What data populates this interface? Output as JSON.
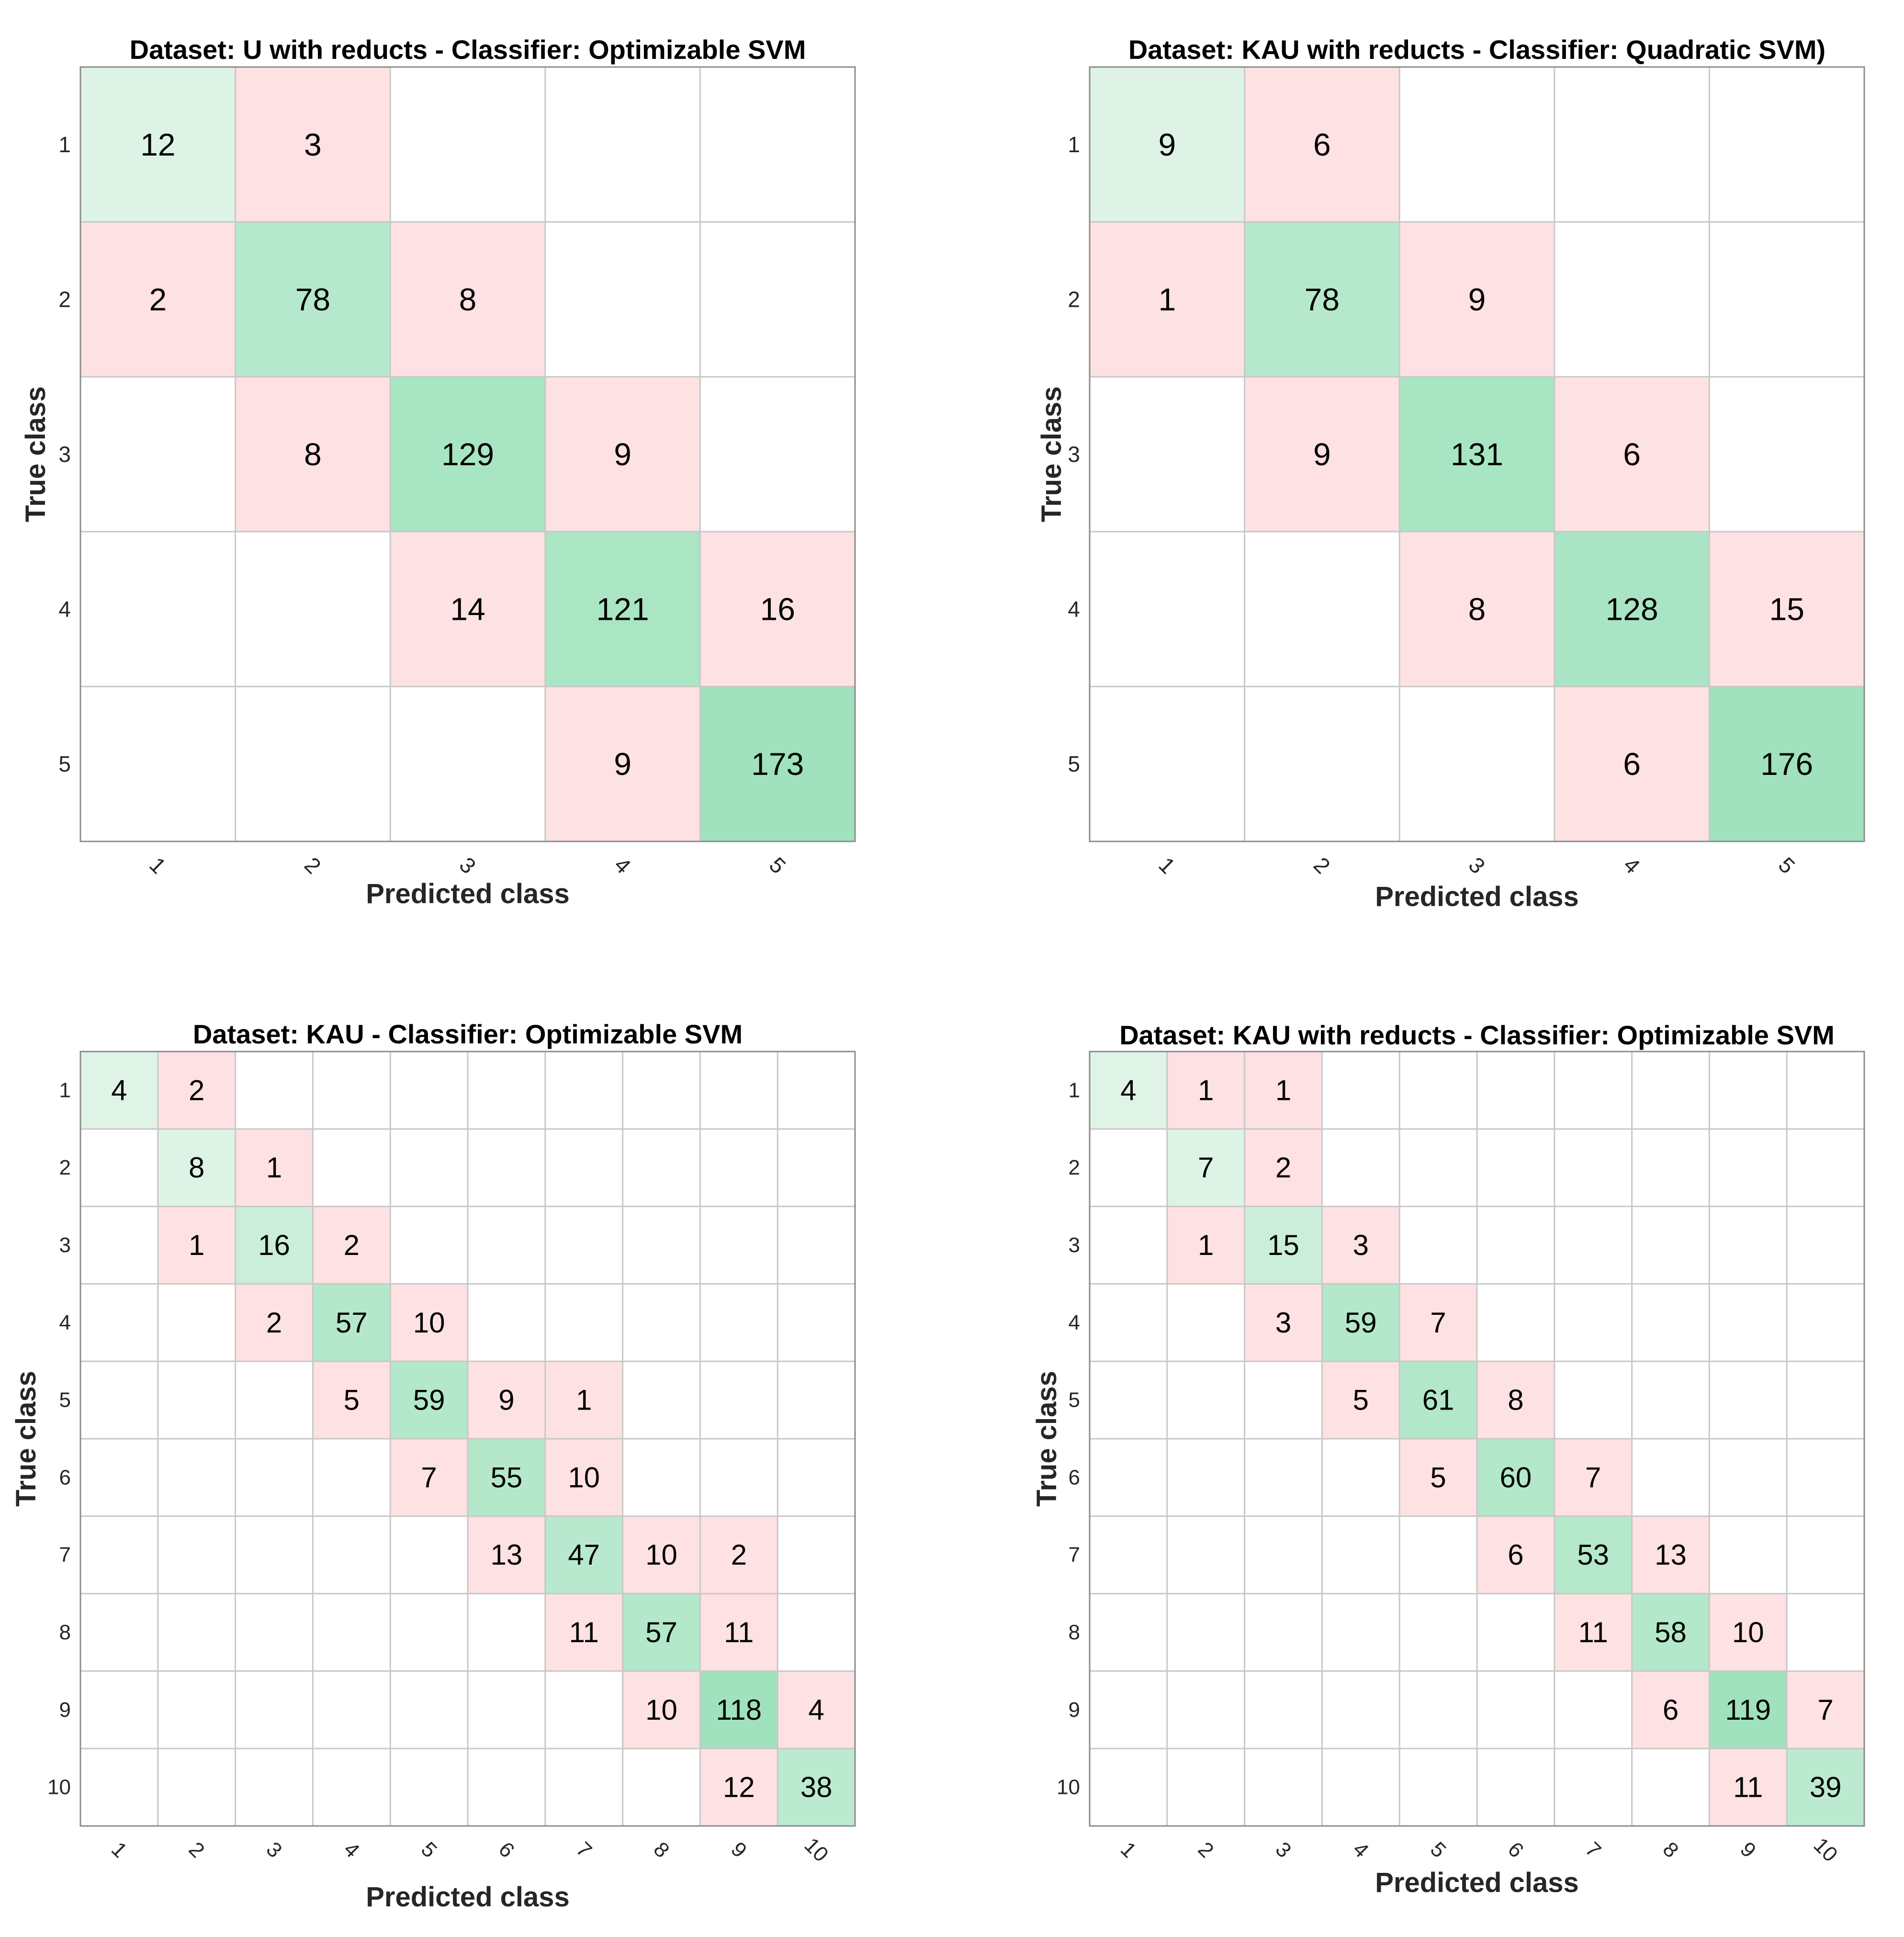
{
  "colors": {
    "background": "#ffffff",
    "grid": "#c8c8c8",
    "border": "#8c8c8c",
    "correct_low": "#e3f5ea",
    "correct_high": "#9fe2bd",
    "incorrect": "#fde1e3"
  },
  "chart_data": [
    {
      "type": "heatmap",
      "title": "Dataset: U with reducts - Classifier: Optimizable SVM",
      "xlabel": "Predicted class",
      "ylabel": "True class",
      "classes": [
        "1",
        "2",
        "3",
        "4",
        "5"
      ],
      "matrix": [
        [
          12,
          3,
          0,
          0,
          0
        ],
        [
          2,
          78,
          8,
          0,
          0
        ],
        [
          0,
          8,
          129,
          9,
          0
        ],
        [
          0,
          0,
          14,
          121,
          16
        ],
        [
          0,
          0,
          0,
          9,
          173
        ]
      ]
    },
    {
      "type": "heatmap",
      "title": "Dataset: KAU with reducts - Classifier: Quadratic SVM)",
      "xlabel": "Predicted class",
      "ylabel": "True class",
      "classes": [
        "1",
        "2",
        "3",
        "4",
        "5"
      ],
      "matrix": [
        [
          9,
          6,
          0,
          0,
          0
        ],
        [
          1,
          78,
          9,
          0,
          0
        ],
        [
          0,
          9,
          131,
          6,
          0
        ],
        [
          0,
          0,
          8,
          128,
          15
        ],
        [
          0,
          0,
          0,
          6,
          176
        ]
      ]
    },
    {
      "type": "heatmap",
      "title": "Dataset: KAU - Classifier: Optimizable SVM",
      "xlabel": "Predicted class",
      "ylabel": "True class",
      "classes": [
        "1",
        "2",
        "3",
        "4",
        "5",
        "6",
        "7",
        "8",
        "9",
        "10"
      ],
      "matrix": [
        [
          4,
          2,
          0,
          0,
          0,
          0,
          0,
          0,
          0,
          0
        ],
        [
          0,
          8,
          1,
          0,
          0,
          0,
          0,
          0,
          0,
          0
        ],
        [
          0,
          1,
          16,
          2,
          0,
          0,
          0,
          0,
          0,
          0
        ],
        [
          0,
          0,
          2,
          57,
          10,
          0,
          0,
          0,
          0,
          0
        ],
        [
          0,
          0,
          0,
          5,
          59,
          9,
          1,
          0,
          0,
          0
        ],
        [
          0,
          0,
          0,
          0,
          7,
          55,
          10,
          0,
          0,
          0
        ],
        [
          0,
          0,
          0,
          0,
          0,
          13,
          47,
          10,
          2,
          0
        ],
        [
          0,
          0,
          0,
          0,
          0,
          0,
          11,
          57,
          11,
          0
        ],
        [
          0,
          0,
          0,
          0,
          0,
          0,
          0,
          10,
          118,
          4
        ],
        [
          0,
          0,
          0,
          0,
          0,
          0,
          0,
          0,
          12,
          38
        ]
      ]
    },
    {
      "type": "heatmap",
      "title": "Dataset: KAU with reducts - Classifier: Optimizable SVM",
      "xlabel": "Predicted class",
      "ylabel": "True class",
      "classes": [
        "1",
        "2",
        "3",
        "4",
        "5",
        "6",
        "7",
        "8",
        "9",
        "10"
      ],
      "matrix": [
        [
          4,
          1,
          1,
          0,
          0,
          0,
          0,
          0,
          0,
          0
        ],
        [
          0,
          7,
          2,
          0,
          0,
          0,
          0,
          0,
          0,
          0
        ],
        [
          0,
          1,
          15,
          3,
          0,
          0,
          0,
          0,
          0,
          0
        ],
        [
          0,
          0,
          3,
          59,
          7,
          0,
          0,
          0,
          0,
          0
        ],
        [
          0,
          0,
          0,
          5,
          61,
          8,
          0,
          0,
          0,
          0
        ],
        [
          0,
          0,
          0,
          0,
          5,
          60,
          7,
          0,
          0,
          0
        ],
        [
          0,
          0,
          0,
          0,
          0,
          6,
          53,
          13,
          0,
          0
        ],
        [
          0,
          0,
          0,
          0,
          0,
          0,
          11,
          58,
          10,
          0
        ],
        [
          0,
          0,
          0,
          0,
          0,
          0,
          0,
          6,
          119,
          7
        ],
        [
          0,
          0,
          0,
          0,
          0,
          0,
          0,
          0,
          11,
          39
        ]
      ]
    }
  ]
}
